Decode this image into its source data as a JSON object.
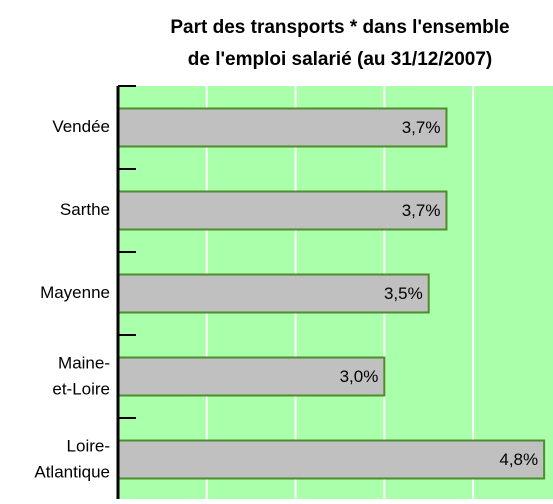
{
  "chart_data": {
    "type": "hbar",
    "title": [
      "Part des transports * dans l'ensemble",
      "de l'emploi salarié (au 31/12/2007)"
    ],
    "categories": [
      "Vendée",
      "Sarthe",
      "Mayenne",
      "Maine-et-Loire",
      "Loire-Atlantique"
    ],
    "values": [
      3.7,
      3.7,
      3.5,
      3.0,
      4.8
    ],
    "value_labels": [
      "3,7%",
      "3,7%",
      "3,5%",
      "3,0%",
      "4,8%"
    ],
    "color": "#c0c0c0",
    "edge_color": "#4e8c2e",
    "background": "#aaffaa",
    "xlim": [
      0,
      4.9
    ],
    "xticks": [
      1,
      2,
      3,
      4
    ],
    "grid": true
  }
}
